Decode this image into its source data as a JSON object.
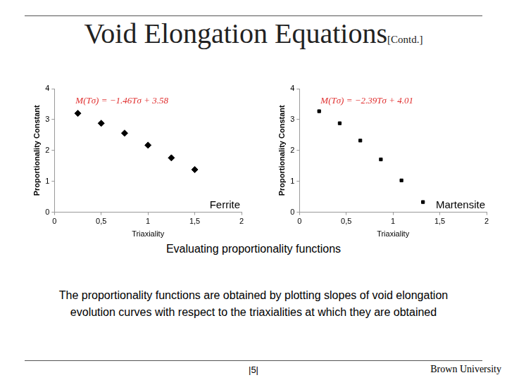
{
  "title": "Void Elongation Equations",
  "subtitle": "[Contd.]",
  "chart_data": [
    {
      "type": "scatter",
      "title": "Ferrite",
      "annotation": "M(Tσ) = −1.46Tσ + 3.58",
      "x_label": "Triaxiality",
      "y_label": "Proportionality Constant",
      "x": [
        0.25,
        0.5,
        0.75,
        1.0,
        1.25,
        1.5
      ],
      "values": [
        3.2,
        2.88,
        2.56,
        2.17,
        1.76,
        1.38
      ],
      "color": "#000000",
      "marker": "diamond",
      "xlim": [
        0,
        2
      ],
      "xticks": [
        0,
        {
          "value": 0.5,
          "label": "0,5"
        },
        1,
        {
          "value": 1.5,
          "label": "1,5"
        },
        2
      ],
      "ylim": [
        0,
        4
      ],
      "yticks": [
        0,
        1,
        2,
        3,
        4
      ],
      "grid": false
    },
    {
      "type": "scatter",
      "title": "Martensite",
      "annotation": "M(Tσ) = −2.39Tσ + 4.01",
      "x_label": "Triaxiality",
      "y_label": "Proportionality Constant",
      "x": [
        0.21,
        0.43,
        0.65,
        0.87,
        1.09,
        1.32
      ],
      "values": [
        3.27,
        2.88,
        2.32,
        1.71,
        1.03,
        0.33
      ],
      "color": "#000000",
      "marker": "square",
      "xlim": [
        0,
        2
      ],
      "xticks": [
        0,
        {
          "value": 0.5,
          "label": "0,5"
        },
        1,
        {
          "value": 1.5,
          "label": "1,5"
        },
        2
      ],
      "ylim": [
        0,
        4
      ],
      "yticks": [
        0,
        1,
        2,
        3,
        4
      ],
      "grid": false
    }
  ],
  "caption": "Evaluating proportionality functions",
  "body": "The proportionality functions are obtained by plotting slopes of void elongation evolution curves with respect to the triaxialities at which they are obtained",
  "page": "|5|",
  "footer": "Brown University"
}
